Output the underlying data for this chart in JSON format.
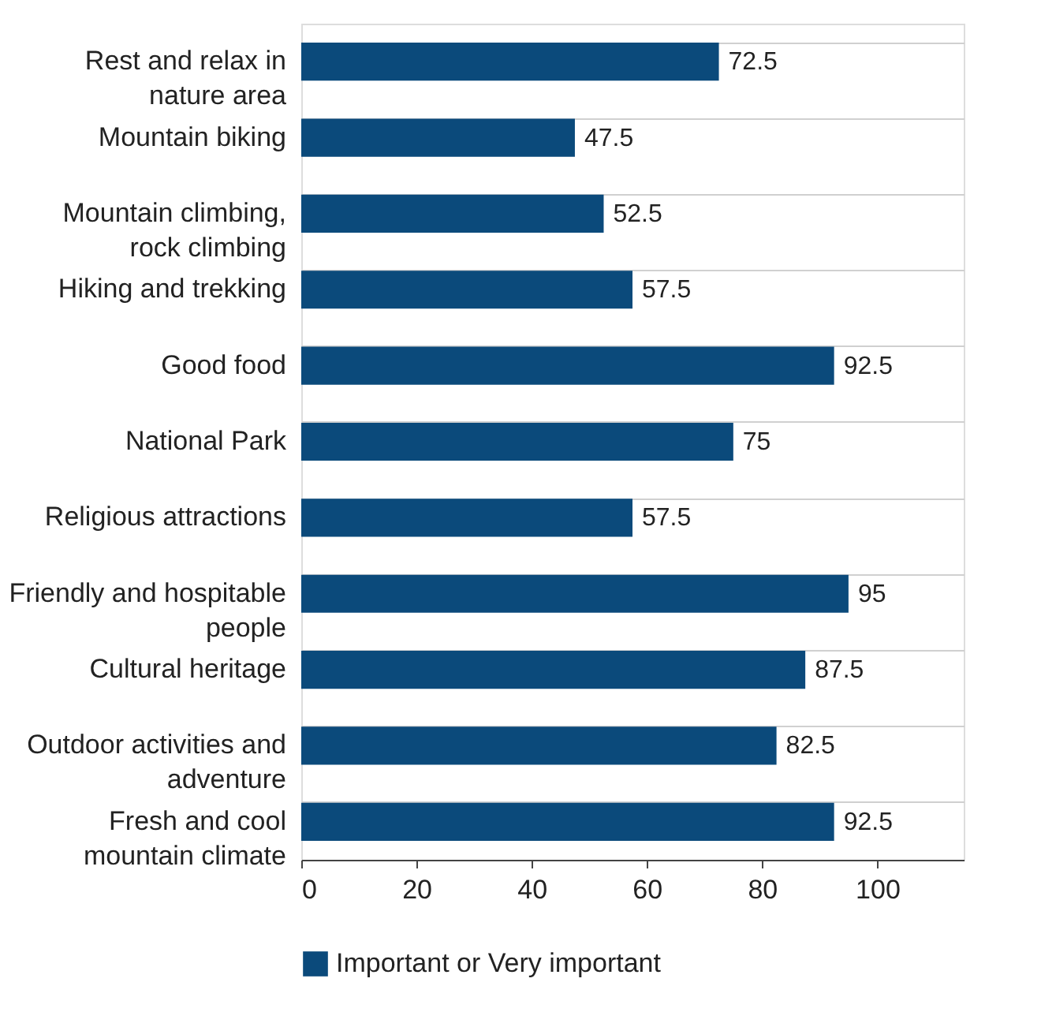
{
  "chart_data": {
    "type": "bar",
    "orientation": "horizontal",
    "categories": [
      "Rest and relax in\nnature area",
      "Mountain biking",
      "Mountain climbing,\nrock climbing",
      "Hiking and trekking",
      "Good food",
      "National Park",
      "Religious attractions",
      "Friendly and hospitable\npeople",
      "Cultural heritage",
      "Outdoor activities and\nadventure",
      "Fresh and cool\nmountain climate"
    ],
    "series": [
      {
        "name": "Important or Very important",
        "color": "#0b4a7b",
        "values": [
          72.5,
          47.5,
          52.5,
          57.5,
          92.5,
          75,
          57.5,
          95,
          87.5,
          82.5,
          92.5
        ]
      }
    ],
    "xlim": [
      0,
      115
    ],
    "xticks": [
      0,
      20,
      40,
      60,
      80,
      100
    ],
    "data_labels": true,
    "grid": "y",
    "legend": "bottom"
  }
}
